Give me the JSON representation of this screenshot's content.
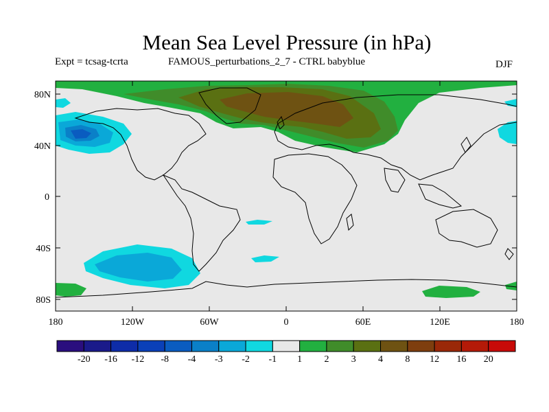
{
  "title": "Mean Sea Level Pressure (in hPa)",
  "subtitle_left": "Expt = tcsag-tcrta",
  "subtitle_center": "FAMOUS_perturbations_2_7 - CTRL babyblue",
  "subtitle_right": "DJF",
  "lat_ticks": [
    "80N",
    "40N",
    "0",
    "40S",
    "80S"
  ],
  "lon_ticks": [
    "180",
    "120W",
    "60W",
    "0",
    "60E",
    "120E",
    "180"
  ],
  "colorbar": {
    "colors": [
      "#2a0e7e",
      "#1a1a8a",
      "#0e2ca8",
      "#0a40b8",
      "#0a5cc0",
      "#0a80c8",
      "#0aa8d8",
      "#10d8e0",
      "#e8e8e8",
      "#22b040",
      "#408c2a",
      "#5a7012",
      "#6e5212",
      "#7e3e0e",
      "#9a2808",
      "#b41a08",
      "#c80a08"
    ],
    "labels": [
      "-20",
      "-16",
      "-12",
      "-8",
      "-4",
      "-3",
      "-2",
      "-1",
      "1",
      "2",
      "3",
      "4",
      "8",
      "12",
      "16",
      "20"
    ]
  },
  "colors": {
    "neutral": "#e8e8e8",
    "pos1": "#22b040",
    "pos2": "#408c2a",
    "pos3": "#5a7012",
    "pos4": "#6e5212",
    "neg1": "#10d8e0",
    "neg2": "#0aa8d8",
    "neg3": "#0a80c8",
    "neg4": "#0a5cc0"
  }
}
